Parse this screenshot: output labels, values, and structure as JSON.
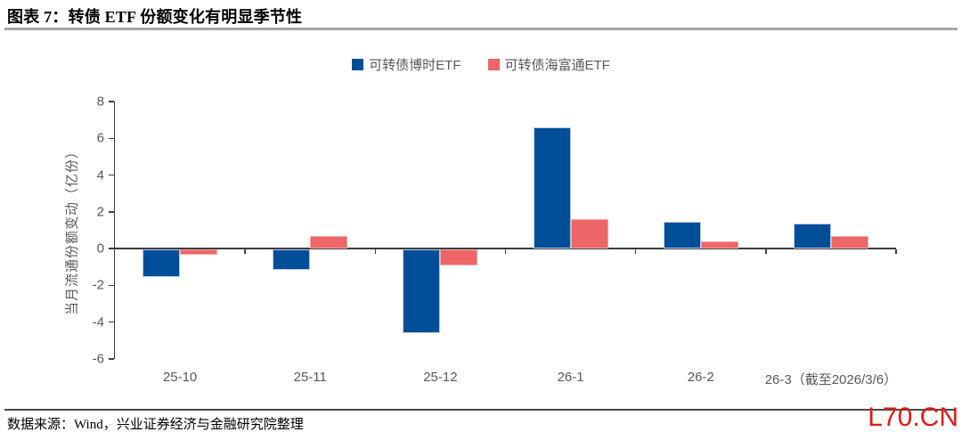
{
  "header": {
    "title": "图表 7：转债 ETF 份额变化有明显季节性"
  },
  "footer": {
    "source": "数据来源：Wind，兴业证券经济与金融研究院整理",
    "watermark": "L70.CN"
  },
  "colors": {
    "series_boshi_blue": "#004e98",
    "series_haifutong_red": "#ee6567",
    "blue_bar_edge": "#b9cbe7",
    "red_bar_edge": "#f5a9a9",
    "axis_line": "#404040",
    "axis_text": "#595959",
    "title_rule_gray": "#a6a6a6",
    "watermark_red": "#e41a10"
  },
  "chart_data": {
    "type": "bar",
    "title": "",
    "xlabel": "",
    "ylabel": "当月流通份额变动（亿份）",
    "categories": [
      "25-10",
      "25-11",
      "25-12",
      "26-1",
      "26-2",
      "26-3（截至2026/3/6）"
    ],
    "series": [
      {
        "name": "可转债博时ETF",
        "color": "#004e98",
        "edge": "#b9cbe7",
        "values": [
          -1.5,
          -1.1,
          -4.55,
          6.6,
          1.45,
          1.35
        ]
      },
      {
        "name": "可转债海富通ETF",
        "color": "#ee6567",
        "edge": "#f5a9a9",
        "values": [
          -0.3,
          0.7,
          -0.85,
          1.6,
          0.4,
          0.7
        ]
      }
    ],
    "ylim": [
      -6,
      8
    ],
    "ytick_step": 2,
    "yticks": [
      8,
      6,
      4,
      2,
      0,
      -2,
      -4,
      -6
    ],
    "grid": false,
    "legend_position": "top-center"
  }
}
